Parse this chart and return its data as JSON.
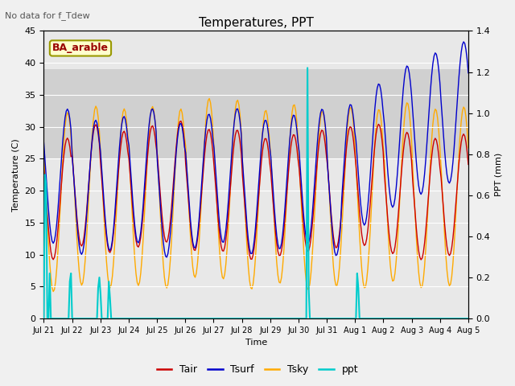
{
  "title": "Temperatures, PPT",
  "note": "No data for f_Tdew",
  "label_text": "BA_arable",
  "xlabel": "Time",
  "ylabel_left": "Temperature (C)",
  "ylabel_right": "PPT (mm)",
  "ylim_left": [
    0,
    45
  ],
  "ylim_right": [
    0.0,
    1.4
  ],
  "fig_facecolor": "#f0f0f0",
  "plot_facecolor": "#e8e8e8",
  "shade_band": [
    25,
    39
  ],
  "shade_color": "#d0d0d0",
  "line_colors": {
    "Tair": "#cc0000",
    "Tsurf": "#0000cc",
    "Tsky": "#ffaa00",
    "ppt": "#00cccc"
  },
  "x_tick_labels": [
    "Jul 21",
    "Jul 22",
    "Jul 23",
    "Jul 24",
    "Jul 25",
    "Jul 26",
    "Jul 27",
    "Jul 28",
    "Jul 29",
    "Jul 30",
    "Jul 31",
    "Aug 1",
    "Aug 2",
    "Aug 3",
    "Aug 4",
    "Aug 5"
  ],
  "yticks_left": [
    0,
    5,
    10,
    15,
    20,
    25,
    30,
    35,
    40,
    45
  ],
  "yticks_right": [
    0.0,
    0.2,
    0.4,
    0.6,
    0.8,
    1.0,
    1.2,
    1.4
  ]
}
